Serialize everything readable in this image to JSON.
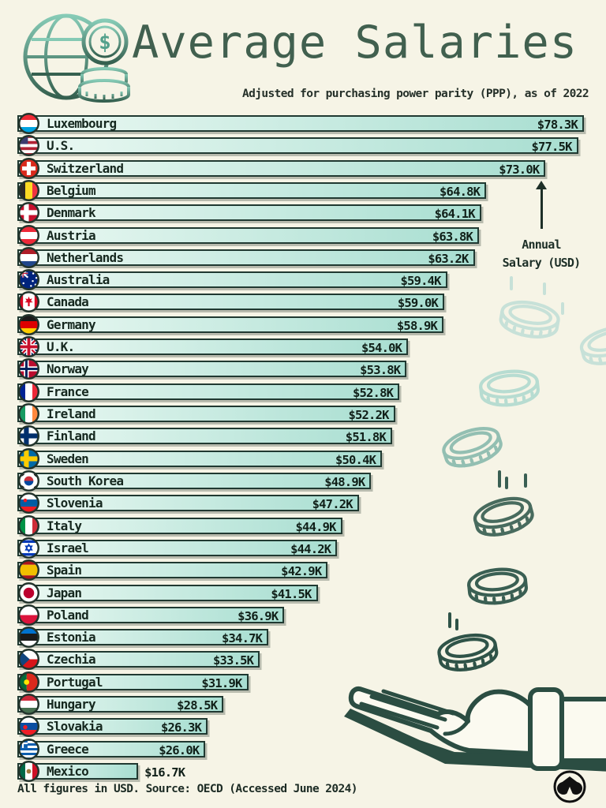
{
  "header": {
    "title": "Average Salaries",
    "subtitle": "Adjusted for purchasing power parity (PPP), as of 2022"
  },
  "annotation": {
    "line1": "Annual",
    "line2": "Salary (USD)"
  },
  "footer": {
    "note": "All figures in USD. Source: OECD (Accessed June 2024)"
  },
  "colors": {
    "background": "#f6f4e6",
    "bar_fill_start": "#ecf9f3",
    "bar_fill_end": "#a8ded1",
    "bar_border": "#203931",
    "title_green": "#41604f",
    "text_dark": "#16281f",
    "hand_outline": "#2b4d42",
    "coin_light": "#c7e1d8",
    "coin_medium": "#93bfb2",
    "coin_dark": "#3a5f53"
  },
  "chart_data": {
    "type": "bar",
    "orientation": "horizontal",
    "title": "Average Salaries",
    "subtitle": "Adjusted for purchasing power parity (PPP), as of 2022",
    "xlabel": "Annual Salary (USD)",
    "value_unit": "USD thousands, PPP-adjusted, 2022",
    "source": "OECD (Accessed June 2024)",
    "max_value": 78.3,
    "rows": [
      {
        "country": "Luxembourg",
        "value": 78.3,
        "label": "$78.3K",
        "flag": {
          "type": "h",
          "colors": [
            "#EE2A35",
            "#FFFFFF",
            "#00A3E0"
          ]
        }
      },
      {
        "country": "U.S.",
        "value": 77.5,
        "label": "$77.5K",
        "flag": {
          "type": "us"
        }
      },
      {
        "country": "Switzerland",
        "value": 73.0,
        "label": "$73.0K",
        "flag": {
          "type": "cross",
          "bg": "#DA291C",
          "cross": "#FFFFFF"
        }
      },
      {
        "country": "Belgium",
        "value": 64.8,
        "label": "$64.8K",
        "flag": {
          "type": "v",
          "colors": [
            "#2D2926",
            "#FDDA24",
            "#EF3340"
          ]
        }
      },
      {
        "country": "Denmark",
        "value": 64.1,
        "label": "$64.1K",
        "flag": {
          "type": "nordic",
          "bg": "#C8102E",
          "cross": "#FFFFFF"
        }
      },
      {
        "country": "Austria",
        "value": 63.8,
        "label": "$63.8K",
        "flag": {
          "type": "h",
          "colors": [
            "#ED2939",
            "#FFFFFF",
            "#ED2939"
          ]
        }
      },
      {
        "country": "Netherlands",
        "value": 63.2,
        "label": "$63.2K",
        "flag": {
          "type": "h",
          "colors": [
            "#AE1C28",
            "#FFFFFF",
            "#21468B"
          ]
        }
      },
      {
        "country": "Australia",
        "value": 59.4,
        "label": "$59.4K",
        "flag": {
          "type": "au"
        }
      },
      {
        "country": "Canada",
        "value": 59.0,
        "label": "$59.0K",
        "flag": {
          "type": "ca"
        }
      },
      {
        "country": "Germany",
        "value": 58.9,
        "label": "$58.9K",
        "flag": {
          "type": "h",
          "colors": [
            "#1A1A1A",
            "#DD0000",
            "#FFCE00"
          ]
        }
      },
      {
        "country": "U.K.",
        "value": 54.0,
        "label": "$54.0K",
        "flag": {
          "type": "uk"
        }
      },
      {
        "country": "Norway",
        "value": 53.8,
        "label": "$53.8K",
        "flag": {
          "type": "nordic",
          "bg": "#BA0C2F",
          "cross": "#FFFFFF",
          "inner": "#00205B"
        }
      },
      {
        "country": "France",
        "value": 52.8,
        "label": "$52.8K",
        "flag": {
          "type": "v",
          "colors": [
            "#002395",
            "#FFFFFF",
            "#ED2939"
          ]
        }
      },
      {
        "country": "Ireland",
        "value": 52.2,
        "label": "$52.2K",
        "flag": {
          "type": "v",
          "colors": [
            "#169B62",
            "#FFFFFF",
            "#FF883E"
          ]
        }
      },
      {
        "country": "Finland",
        "value": 51.8,
        "label": "$51.8K",
        "flag": {
          "type": "nordic",
          "bg": "#FFFFFF",
          "cross": "#002F6C"
        }
      },
      {
        "country": "Sweden",
        "value": 50.4,
        "label": "$50.4K",
        "flag": {
          "type": "nordic",
          "bg": "#006AA7",
          "cross": "#FECC02"
        }
      },
      {
        "country": "South Korea",
        "value": 48.9,
        "label": "$48.9K",
        "flag": {
          "type": "kr"
        }
      },
      {
        "country": "Slovenia",
        "value": 47.2,
        "label": "$47.2K",
        "flag": {
          "type": "h",
          "colors": [
            "#FFFFFF",
            "#005DA4",
            "#ED1C24"
          ],
          "dot": {
            "x": 8,
            "y": 9,
            "r": 2,
            "c": "#ED1C24"
          }
        }
      },
      {
        "country": "Italy",
        "value": 44.9,
        "label": "$44.9K",
        "flag": {
          "type": "v",
          "colors": [
            "#009246",
            "#FFFFFF",
            "#CE2B37"
          ]
        }
      },
      {
        "country": "Israel",
        "value": 44.2,
        "label": "$44.2K",
        "flag": {
          "type": "il"
        }
      },
      {
        "country": "Spain",
        "value": 42.9,
        "label": "$42.9K",
        "flag": {
          "type": "h",
          "colors": [
            "#AA151B",
            "#F1BF00",
            "#AA151B"
          ],
          "weights": [
            1,
            2,
            1
          ]
        }
      },
      {
        "country": "Japan",
        "value": 41.5,
        "label": "$41.5K",
        "flag": {
          "type": "disc",
          "bg": "#FFFFFF",
          "disc": "#BC002D"
        }
      },
      {
        "country": "Poland",
        "value": 36.9,
        "label": "$36.9K",
        "flag": {
          "type": "h",
          "colors": [
            "#FFFFFF",
            "#DC143C"
          ]
        }
      },
      {
        "country": "Estonia",
        "value": 34.7,
        "label": "$34.7K",
        "flag": {
          "type": "h",
          "colors": [
            "#0072CE",
            "#1A1A1A",
            "#FFFFFF"
          ]
        }
      },
      {
        "country": "Czechia",
        "value": 33.5,
        "label": "$33.5K",
        "flag": {
          "type": "cz"
        }
      },
      {
        "country": "Portugal",
        "value": 31.9,
        "label": "$31.9K",
        "flag": {
          "type": "v",
          "colors": [
            "#046A38",
            "#DA291C"
          ],
          "weights": [
            2,
            3
          ],
          "dot": {
            "x": 9.5,
            "y": 12,
            "r": 3,
            "c": "#FFE600"
          }
        }
      },
      {
        "country": "Hungary",
        "value": 28.5,
        "label": "$28.5K",
        "flag": {
          "type": "h",
          "colors": [
            "#CE2939",
            "#FFFFFF",
            "#477050"
          ]
        }
      },
      {
        "country": "Slovakia",
        "value": 26.3,
        "label": "$26.3K",
        "flag": {
          "type": "h",
          "colors": [
            "#FFFFFF",
            "#0B4EA2",
            "#EE1C25"
          ],
          "dot": {
            "x": 8,
            "y": 13,
            "r": 2.4,
            "c": "#EE1C25"
          }
        }
      },
      {
        "country": "Greece",
        "value": 26.0,
        "label": "$26.0K",
        "flag": {
          "type": "gr"
        }
      },
      {
        "country": "Mexico",
        "value": 16.7,
        "label": "$16.7K",
        "label_outside": true,
        "flag": {
          "type": "v",
          "colors": [
            "#006847",
            "#FFFFFF",
            "#CE1126"
          ],
          "dot": {
            "x": 12,
            "y": 12,
            "r": 2.6,
            "c": "#A0793B"
          }
        }
      }
    ]
  }
}
